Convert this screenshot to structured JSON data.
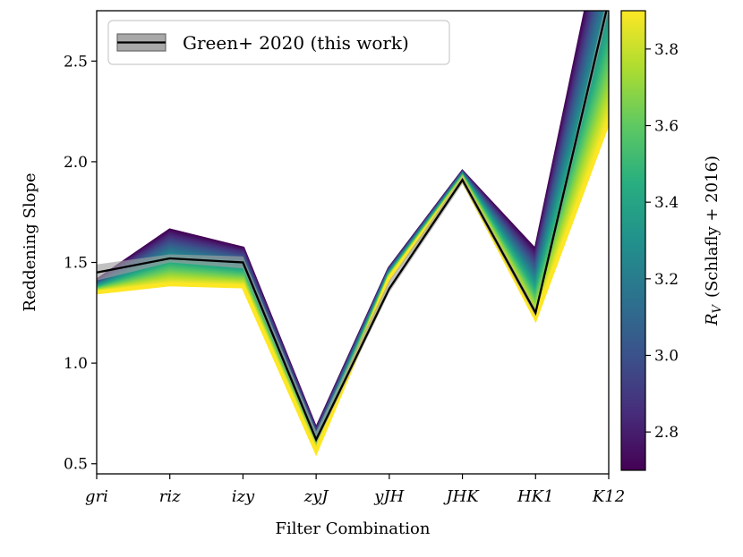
{
  "chart_data": {
    "type": "line",
    "xlabel": "Filter Combination",
    "ylabel": "Reddening Slope",
    "categories": [
      "gri",
      "riz",
      "izy",
      "zyJ",
      "yJH",
      "JHK",
      "HK1",
      "K12"
    ],
    "ylim": [
      0.45,
      2.75
    ],
    "yticks": [
      0.5,
      1.0,
      1.5,
      2.0,
      2.5
    ],
    "ytick_labels": [
      "0.5",
      "1.0",
      "1.5",
      "2.0",
      "2.5"
    ],
    "grid": false,
    "legend_position": "top-left",
    "series": [
      {
        "name": "Green+ 2020 (this work)",
        "values": [
          1.45,
          1.52,
          1.5,
          0.62,
          1.37,
          1.91,
          1.25,
          2.8
        ],
        "band_low": [
          1.41,
          1.5,
          1.47,
          0.6,
          1.35,
          1.89,
          1.23,
          2.75
        ],
        "band_high": [
          1.49,
          1.54,
          1.53,
          0.66,
          1.41,
          1.93,
          1.27,
          2.85
        ],
        "color": "#000000"
      }
    ],
    "rv_fan": {
      "rv_range": [
        2.7,
        3.9
      ],
      "low_rv_values": [
        1.41,
        1.66,
        1.57,
        0.67,
        1.47,
        1.95,
        1.56,
        3.3
      ],
      "high_rv_values": [
        1.35,
        1.39,
        1.38,
        0.56,
        1.42,
        1.91,
        1.22,
        2.2
      ]
    },
    "colorbar": {
      "label": "R_V (Schlafly + 2016)",
      "label_symbol": "R",
      "label_subscript": "V",
      "label_rest": "(Schlafly + 2016)",
      "range": [
        2.7,
        3.9
      ],
      "ticks": [
        2.8,
        3.0,
        3.2,
        3.4,
        3.6,
        3.8
      ],
      "tick_labels": [
        "2.8",
        "3.0",
        "3.2",
        "3.4",
        "3.6",
        "3.8"
      ],
      "colormap": "viridis"
    }
  }
}
